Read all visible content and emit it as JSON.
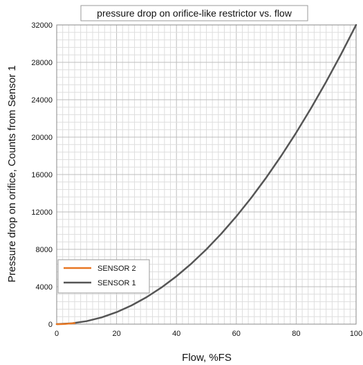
{
  "chart_data": {
    "type": "line",
    "title": "pressure drop on orifice-like restrictor vs. flow",
    "xlabel": "Flow, %FS",
    "ylabel": "Pressure drop on orifice, Counts from Sensor 1",
    "xlim": [
      0,
      100
    ],
    "ylim": [
      0,
      32000
    ],
    "xticks": [
      0,
      20,
      40,
      60,
      80,
      100
    ],
    "yticks": [
      0,
      4000,
      8000,
      12000,
      16000,
      20000,
      24000,
      28000,
      32000
    ],
    "grid": true,
    "legend_position": "lower-left",
    "series": [
      {
        "name": "SENSOR 2",
        "color": "#e87722",
        "x": [
          0,
          1,
          2,
          3,
          4,
          5,
          6
        ],
        "y": [
          0,
          4,
          13,
          29,
          51,
          80,
          115
        ]
      },
      {
        "name": "SENSOR 1",
        "color": "#555555",
        "x": [
          0,
          5,
          10,
          15,
          20,
          25,
          30,
          35,
          40,
          45,
          50,
          55,
          60,
          65,
          70,
          75,
          80,
          85,
          90,
          95,
          100
        ],
        "y": [
          0,
          80,
          320,
          720,
          1280,
          2000,
          2880,
          3920,
          5120,
          6480,
          8000,
          9680,
          11520,
          13520,
          15680,
          18000,
          20480,
          23120,
          25920,
          28880,
          32000
        ]
      }
    ]
  }
}
